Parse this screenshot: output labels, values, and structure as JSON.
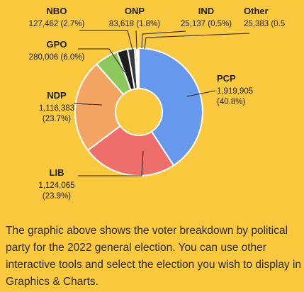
{
  "chart_data": {
    "type": "pie",
    "donut": true,
    "title": "",
    "slices": [
      {
        "label": "PCP",
        "value_text": "1,919,905",
        "pct_text": "(40.8%)",
        "value": 1919905,
        "pct": 40.8,
        "color": "#6699EE"
      },
      {
        "label": "LIB",
        "value_text": "1,124,065",
        "pct_text": "(23.9%)",
        "value": 1124065,
        "pct": 23.9,
        "color": "#EE6E6A"
      },
      {
        "label": "NDP",
        "value_text": "1,116,383",
        "pct_text": "(23.7%)",
        "value": 1116383,
        "pct": 23.7,
        "color": "#F4A462"
      },
      {
        "label": "GPO",
        "value_text": "280,006",
        "pct_text": "(6.0%)",
        "value": 280006,
        "pct": 6.0,
        "color": "#8CC85C"
      },
      {
        "label": "NBO",
        "value_text": "127,462",
        "pct_text": "(2.7%)",
        "value": 127462,
        "pct": 2.7,
        "color": "#1E1E1E"
      },
      {
        "label": "ONP",
        "value_text": "83,618",
        "pct_text": "(1.8%)",
        "value": 83618,
        "pct": 1.8,
        "color": "#3A3A3A"
      },
      {
        "label": "IND",
        "value_text": "25,137",
        "pct_text": "(0.5%)",
        "value": 25137,
        "pct": 0.5,
        "color": "#CCCCCC"
      },
      {
        "label": "Other",
        "value_text": "25,383",
        "pct_text": "(0.5",
        "value": 25383,
        "pct": 0.5,
        "color": "#F2F2F2"
      }
    ]
  },
  "caption": "The graphic above shows the voter breakdown by political party for the 2022 general election. You can use other interactive tools and select the election you wish to display in Graphics & Charts."
}
